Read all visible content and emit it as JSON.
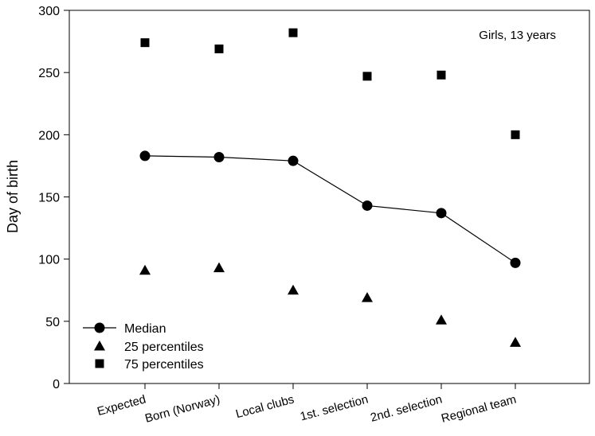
{
  "chart_data": {
    "type": "scatter",
    "annotation": "Girls, 13 years",
    "ylabel": "Day of birth",
    "xlabel": "",
    "ylim": [
      0,
      300
    ],
    "yticks": [
      0,
      50,
      100,
      150,
      200,
      250,
      300
    ],
    "categories": [
      "Expected",
      "Born (Norway)",
      "Local clubs",
      "1st. selection",
      "2nd. selection",
      "Regional team"
    ],
    "series": [
      {
        "name": "Median",
        "marker": "circle",
        "line": true,
        "values": [
          183,
          182,
          179,
          143,
          137,
          97
        ]
      },
      {
        "name": "25 percentiles",
        "marker": "triangle",
        "line": false,
        "values": [
          91,
          93,
          75,
          69,
          51,
          33
        ]
      },
      {
        "name": "75 percentiles",
        "marker": "square",
        "line": false,
        "values": [
          274,
          269,
          282,
          247,
          248,
          200
        ]
      }
    ],
    "legend_position": "bottom-left",
    "grid": false,
    "colors": {
      "marks": "#000000",
      "background": "#ffffff"
    }
  }
}
